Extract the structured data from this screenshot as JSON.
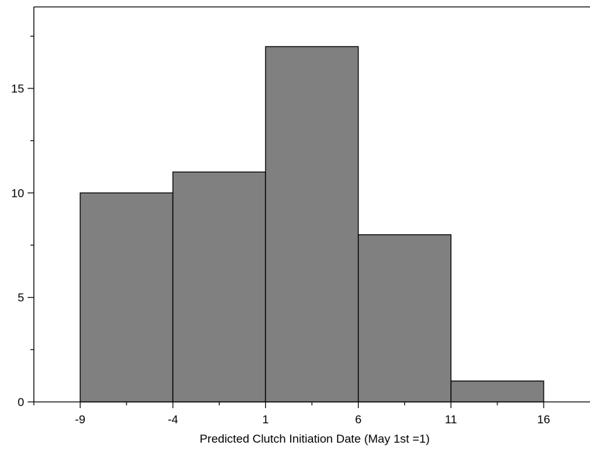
{
  "chart_data": {
    "type": "bar",
    "title": "",
    "xlabel": "Predicted Clutch Initiation Date (May  1st =1)",
    "ylabel": "",
    "bins": [
      {
        "x0": -9,
        "x1": -4,
        "value": 10
      },
      {
        "x0": -4,
        "x1": 1,
        "value": 11
      },
      {
        "x0": 1,
        "x1": 6,
        "value": 17
      },
      {
        "x0": 6,
        "x1": 11,
        "value": 8
      },
      {
        "x0": 11,
        "x1": 16,
        "value": 1
      }
    ],
    "values": [
      10,
      11,
      17,
      8,
      1
    ],
    "xlim": [
      -11.5,
      18.5
    ],
    "ylim": [
      0,
      18.9
    ],
    "x_major_ticks": [
      -9,
      -4,
      1,
      6,
      11,
      16
    ],
    "x_major_tick_labels": [
      "-9",
      "-4",
      "1",
      "6",
      "11",
      "16"
    ],
    "x_minor_ticks": [
      -11.5,
      -6.5,
      -1.5,
      3.5,
      8.5,
      13.5
    ],
    "y_major_ticks": [
      0,
      5,
      10,
      15
    ],
    "y_major_tick_labels": [
      "0",
      "5",
      "10",
      "15"
    ],
    "y_minor_ticks": [
      2.5,
      7.5,
      12.5,
      17.5
    ],
    "grid": false,
    "bar_color": "#808080",
    "edge_color": "#000000"
  }
}
